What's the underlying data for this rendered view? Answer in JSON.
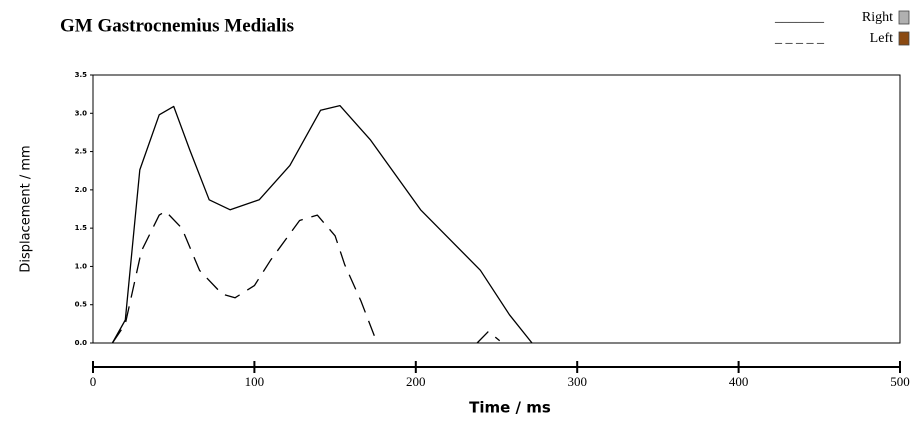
{
  "chart_data": {
    "type": "line",
    "title": "GM Gastrocnemius Medialis",
    "x_label": "Time / ms",
    "y_label": "Displacement / mm",
    "xlim": [
      0,
      500
    ],
    "xticks": [
      0,
      100,
      200,
      300,
      400,
      500
    ],
    "ylim": [
      0,
      3.5
    ],
    "yticks": [
      {
        "value": 0,
        "label": "0.0"
      },
      0.5,
      {
        "value": 1,
        "label": "1.0"
      },
      1.5,
      {
        "value": 2,
        "label": "2.0"
      },
      2.5,
      {
        "value": 3,
        "label": "3.0"
      },
      3.5
    ],
    "series": [
      {
        "name": "Right",
        "line_sample": "_______",
        "color": "#000000",
        "dashed": false,
        "swatch": "#b0b0b0",
        "x": [
          12,
          20,
          29,
          41,
          50,
          60,
          72,
          85,
          103,
          122,
          141,
          153,
          172,
          203,
          240,
          258,
          272
        ],
        "values": [
          0,
          0.3,
          2.26,
          2.98,
          3.09,
          2.52,
          1.87,
          1.74,
          1.87,
          2.32,
          3.04,
          3.1,
          2.65,
          1.74,
          0.95,
          0.37,
          0
        ]
      },
      {
        "name": "Left",
        "line_sample": "_ _ _ _ _",
        "color": "#000000",
        "dashed": true,
        "swatch": "#8b4a12",
        "x": [
          12,
          20,
          30,
          41,
          45,
          55,
          66,
          80,
          88,
          100,
          110,
          128,
          139,
          150,
          156,
          166,
          176,
          200,
          238,
          245,
          252
        ],
        "values": [
          0,
          0.25,
          1.2,
          1.67,
          1.72,
          1.5,
          0.95,
          0.64,
          0.59,
          0.75,
          1.08,
          1.6,
          1.67,
          1.4,
          1.02,
          0.55,
          0,
          null,
          0,
          0.15,
          0.03
        ]
      }
    ]
  }
}
